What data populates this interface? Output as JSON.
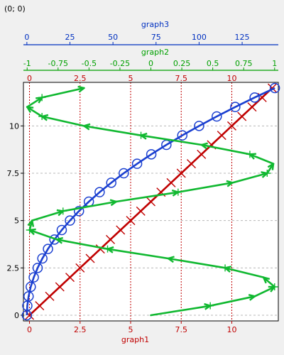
{
  "coordinate_readout": "(0; 0)",
  "chart_data": {
    "type": "line",
    "grid": true,
    "axes": {
      "graph1": {
        "label": "graph1",
        "position": "bottom",
        "color": "#c00000",
        "range": [
          -0.3,
          12.3
        ],
        "ticks": [
          0,
          2.5,
          5,
          7.5,
          10
        ],
        "tick_labels": [
          "0",
          "2.5",
          "5",
          "7.5",
          "10"
        ],
        "mirror_top_labels": [
          "0",
          "2.5",
          "5",
          "7.5",
          "10"
        ]
      },
      "graph2": {
        "label": "graph2",
        "position": "top",
        "color": "#00a000",
        "range": [
          -1.03,
          1.03
        ],
        "ticks": [
          -1,
          -0.75,
          -0.5,
          -0.25,
          0,
          0.25,
          0.5,
          0.75,
          1
        ],
        "tick_labels": [
          "-1",
          "-0.75",
          "-0.5",
          "-0.25",
          "0",
          "0.25",
          "0.5",
          "0.75",
          "1"
        ]
      },
      "graph3": {
        "label": "graph3",
        "position": "top",
        "color": "#0030c0",
        "range": [
          -2,
          146
        ],
        "ticks": [
          0,
          25,
          50,
          75,
          100,
          125
        ],
        "tick_labels": [
          "0",
          "25",
          "50",
          "75",
          "100",
          "125"
        ]
      },
      "y": {
        "range": [
          -0.3,
          12.3
        ],
        "ticks": [
          0,
          2.5,
          5,
          7.5,
          10
        ],
        "tick_labels": [
          "0",
          "2.5",
          "5",
          "7.5",
          "10"
        ]
      }
    },
    "series": [
      {
        "x_axis": "graph1",
        "color": "#c00000",
        "marker": "x",
        "x": [
          0,
          0.5,
          1,
          1.5,
          2,
          2.5,
          3,
          3.5,
          4,
          4.5,
          5,
          5.5,
          6,
          6.5,
          7,
          7.5,
          8,
          8.5,
          9,
          9.5,
          10,
          10.5,
          11,
          11.5,
          12
        ],
        "y": [
          0,
          0.5,
          1,
          1.5,
          2,
          2.5,
          3,
          3.5,
          4,
          4.5,
          5,
          5.5,
          6,
          6.5,
          7,
          7.5,
          8,
          8.5,
          9,
          9.5,
          10,
          10.5,
          11,
          11.5,
          12
        ]
      },
      {
        "x_axis": "graph3",
        "color": "#1a3fd0",
        "marker": "circle",
        "x": [
          0,
          0.25,
          1,
          2.25,
          4,
          6.25,
          9,
          12.25,
          16,
          20.25,
          25,
          30.25,
          36,
          42.25,
          49,
          56.25,
          64,
          72.25,
          81,
          90.25,
          100,
          110.25,
          121,
          132.25,
          144
        ],
        "y": [
          0,
          0.5,
          1,
          1.5,
          2,
          2.5,
          3,
          3.5,
          4,
          4.5,
          5,
          5.5,
          6,
          6.5,
          7,
          7.5,
          8,
          8.5,
          9,
          9.5,
          10,
          10.5,
          11,
          11.5,
          12
        ]
      },
      {
        "x_axis": "graph2",
        "color": "#10b830",
        "marker": "plus",
        "arrows": true,
        "x": [
          0,
          0.48,
          0.84,
          1,
          0.91,
          0.6,
          0.14,
          -0.35,
          -0.76,
          -0.98,
          -0.96,
          -0.71,
          -0.28,
          0.22,
          0.66,
          0.94,
          0.99,
          0.8,
          0.41,
          -0.08,
          -0.54,
          -0.88,
          -1,
          -0.88,
          -0.54
        ],
        "y": [
          0,
          0.5,
          1,
          1.5,
          2,
          2.5,
          3,
          3.5,
          4,
          4.5,
          5,
          5.5,
          6,
          6.5,
          7,
          7.5,
          8,
          8.5,
          9,
          9.5,
          10,
          10.5,
          11,
          11.5,
          12
        ]
      }
    ]
  }
}
